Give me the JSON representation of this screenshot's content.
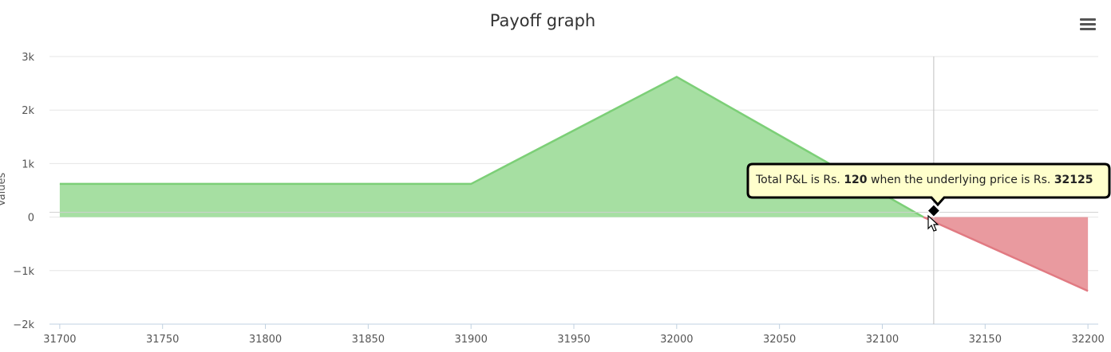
{
  "chart_data": {
    "type": "area",
    "title": "Payoff graph",
    "ylabel": "Values",
    "xlabel": "",
    "x": [
      31700,
      31900,
      32000,
      32120,
      32200
    ],
    "values": [
      620,
      620,
      2620,
      0,
      -1380
    ],
    "xlim": [
      31695,
      32205
    ],
    "ylim": [
      -2000,
      3000
    ],
    "ytick_values": [
      -2000,
      -1000,
      0,
      1000,
      2000,
      3000
    ],
    "ytick_labels": [
      "−2k",
      "−1k",
      "0",
      "1k",
      "2k",
      "3k"
    ],
    "xtick_values": [
      31700,
      31750,
      31800,
      31850,
      31900,
      31950,
      32000,
      32050,
      32100,
      32150,
      32200
    ],
    "xtick_labels": [
      "31700",
      "31750",
      "31800",
      "31850",
      "31900",
      "31950",
      "32000",
      "32050",
      "32100",
      "32150",
      "32200"
    ],
    "grid": true,
    "colors": {
      "profit_fill": "#a6dfa2",
      "profit_line": "#7ccf77",
      "loss_fill": "#e99a9f",
      "loss_line": "#e17a82",
      "grid": "#e6e6e6",
      "crosshair": "#c0c0c0",
      "tooltip_bg": "#ffffcc",
      "tooltip_border": "#000000"
    },
    "crosshair_x": 32125,
    "hover_point": {
      "x": 32125,
      "y": 120
    },
    "tooltip": {
      "text_1": "Total P&L is Rs. ",
      "pnl": "120",
      "text_2": " when the underlying price is Rs. ",
      "price": "32125"
    }
  },
  "menu": {
    "icon": "hamburger-menu-icon"
  }
}
